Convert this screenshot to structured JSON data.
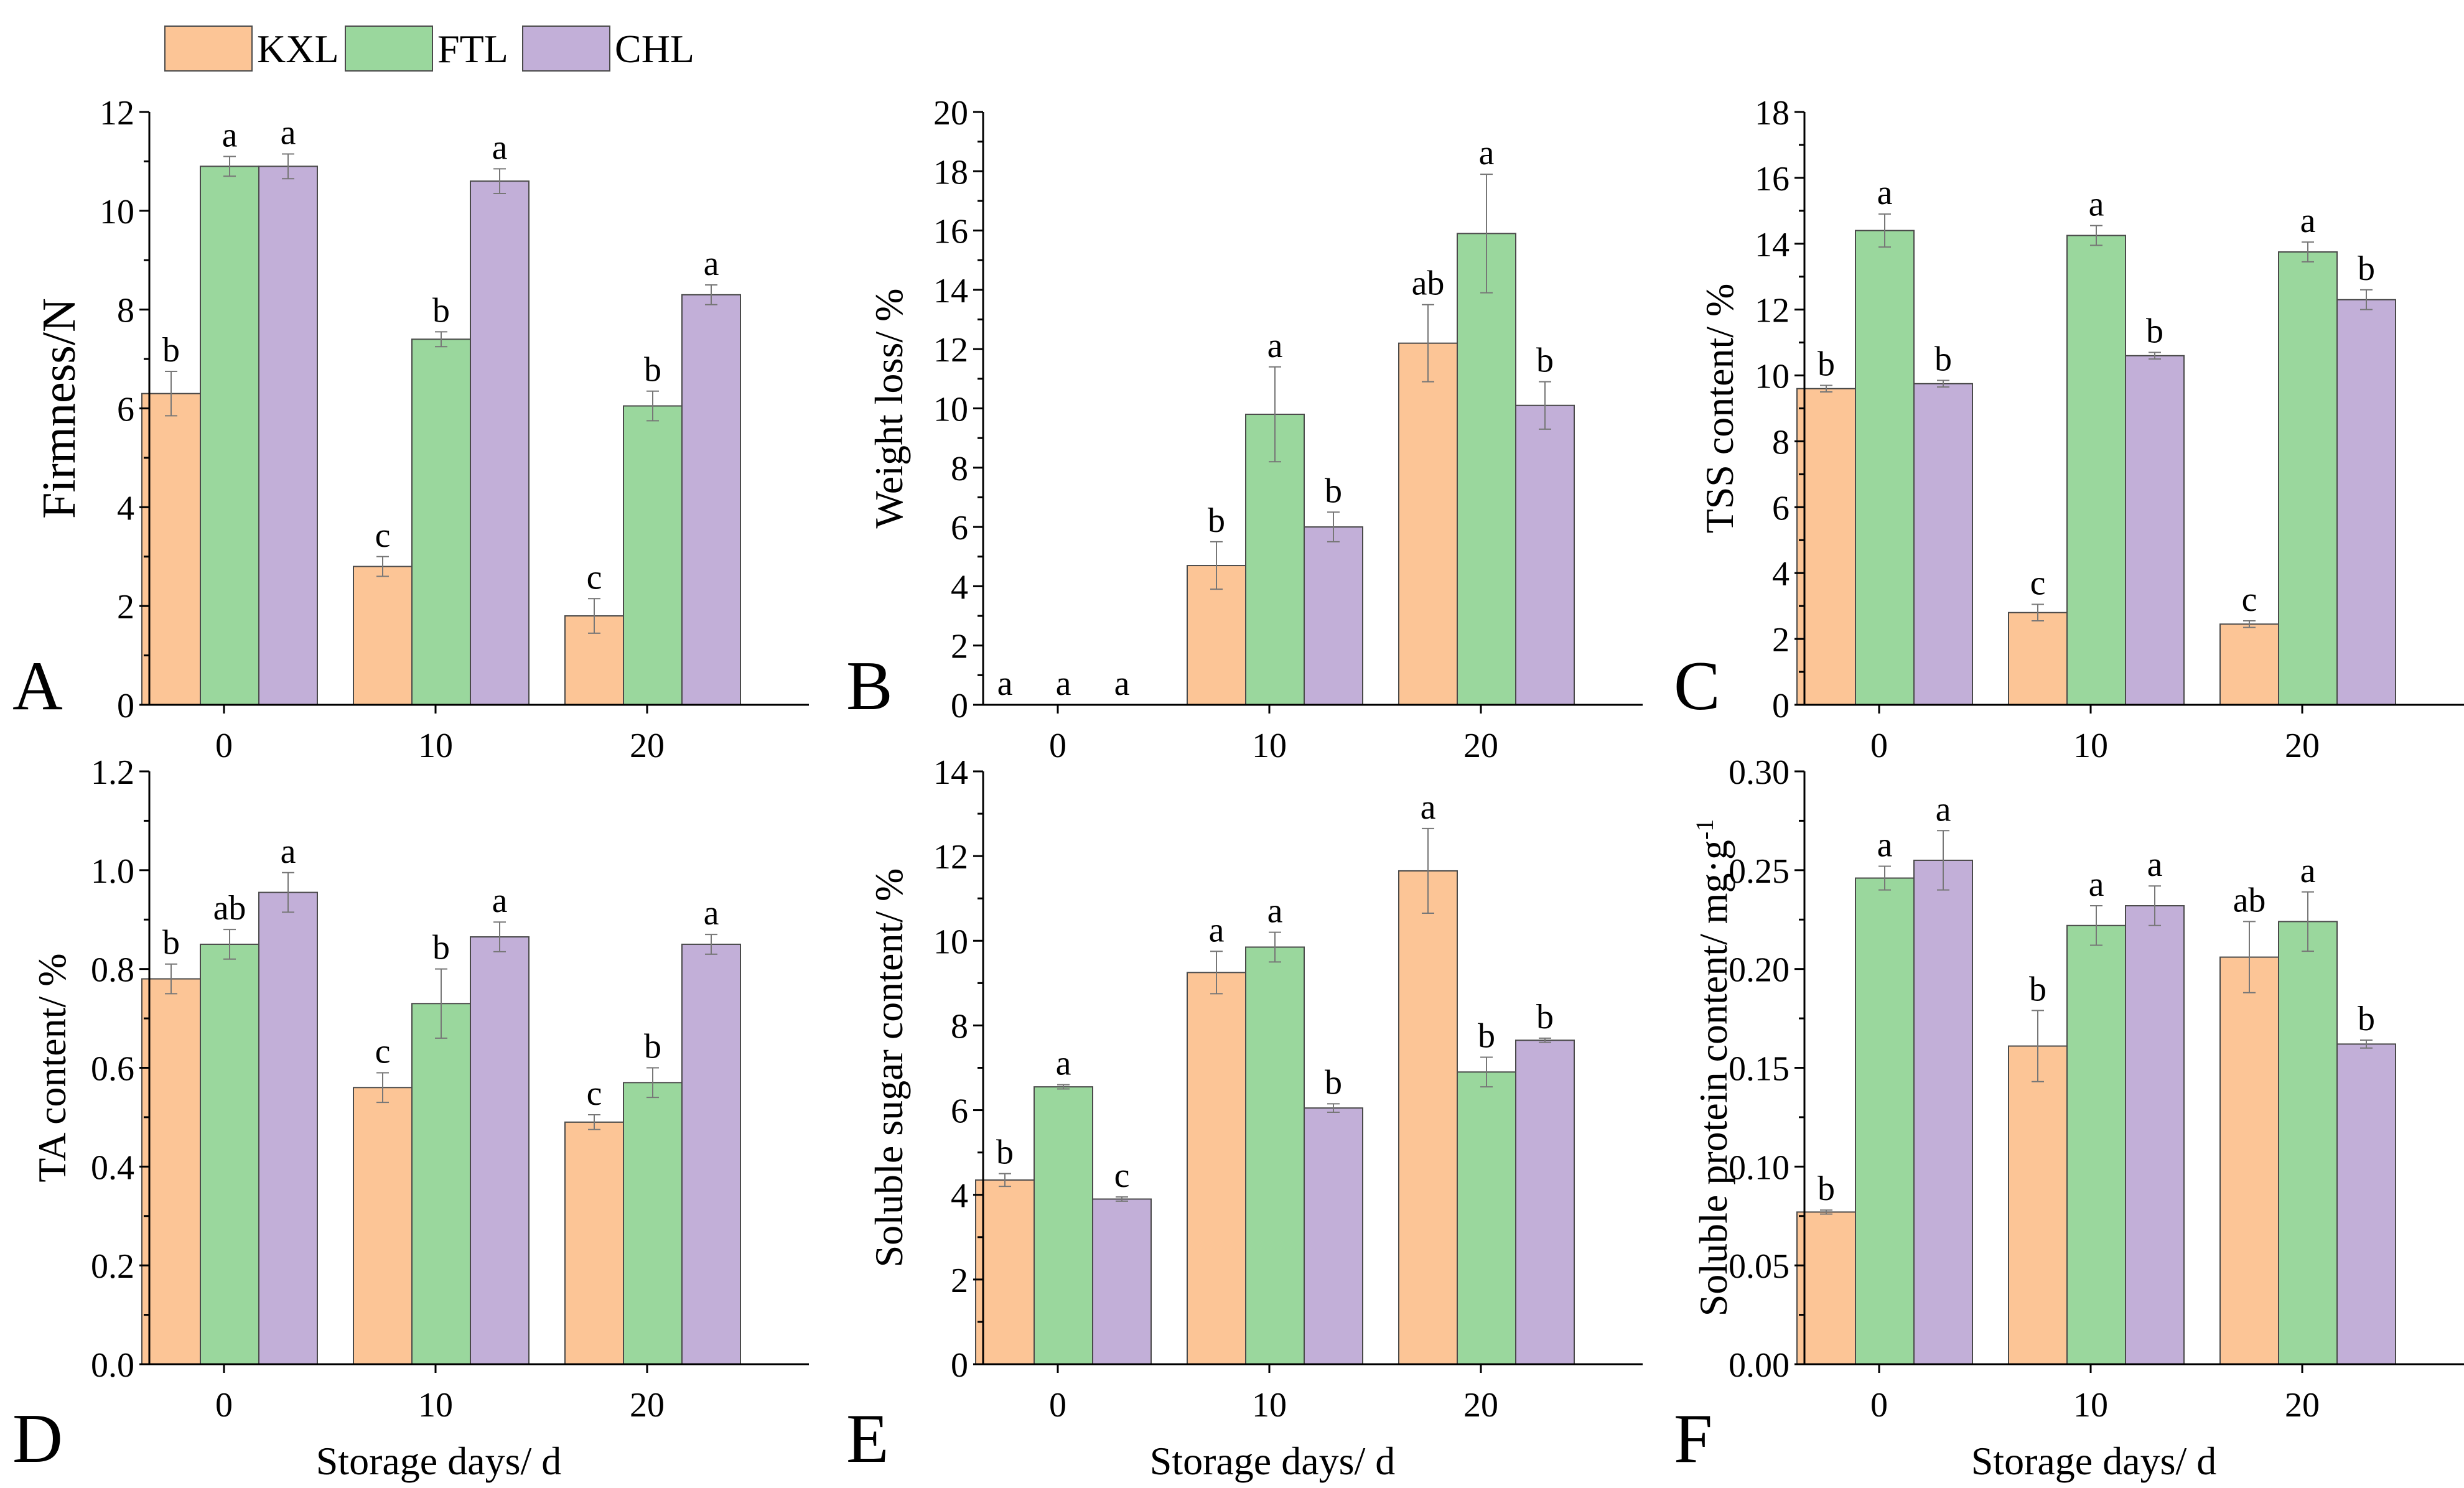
{
  "colors": {
    "KXL": "#fcc596",
    "FTL": "#9ad79d",
    "CHL": "#c2afd8"
  },
  "legend": [
    "KXL",
    "FTL",
    "CHL"
  ],
  "chart_data": [
    {
      "panel": "A",
      "type": "bar",
      "categories": [
        "0",
        "10",
        "20"
      ],
      "xlabel": "",
      "ylabel": "Firmness/N",
      "ylim": [
        0,
        12
      ],
      "yticks": [
        0,
        2,
        4,
        6,
        8,
        10,
        12
      ],
      "series": [
        {
          "name": "KXL",
          "values": [
            6.3,
            2.8,
            1.8
          ],
          "errors": [
            0.45,
            0.2,
            0.35
          ],
          "letters": [
            "b",
            "c",
            "c"
          ]
        },
        {
          "name": "FTL",
          "values": [
            10.9,
            7.4,
            6.05
          ],
          "errors": [
            0.2,
            0.15,
            0.3
          ],
          "letters": [
            "a",
            "b",
            "b"
          ]
        },
        {
          "name": "CHL",
          "values": [
            10.9,
            10.6,
            8.3
          ],
          "errors": [
            0.25,
            0.25,
            0.2
          ],
          "letters": [
            "a",
            "a",
            "a"
          ]
        }
      ]
    },
    {
      "panel": "B",
      "type": "bar",
      "categories": [
        "0",
        "10",
        "20"
      ],
      "xlabel": "",
      "ylabel": "Weight loss/ %",
      "ylim": [
        0,
        20
      ],
      "yticks": [
        0,
        2,
        4,
        6,
        8,
        10,
        12,
        14,
        16,
        18,
        20
      ],
      "series": [
        {
          "name": "KXL",
          "values": [
            0,
            4.7,
            12.2
          ],
          "errors": [
            0,
            0.8,
            1.3
          ],
          "letters": [
            "a",
            "b",
            "ab"
          ]
        },
        {
          "name": "FTL",
          "values": [
            0,
            9.8,
            15.9
          ],
          "errors": [
            0,
            1.6,
            2.0
          ],
          "letters": [
            "a",
            "a",
            "a"
          ]
        },
        {
          "name": "CHL",
          "values": [
            0,
            6.0,
            10.1
          ],
          "errors": [
            0,
            0.5,
            0.8
          ],
          "letters": [
            "a",
            "b",
            "b"
          ]
        }
      ]
    },
    {
      "panel": "C",
      "type": "bar",
      "categories": [
        "0",
        "10",
        "20"
      ],
      "xlabel": "",
      "ylabel": "TSS content/ %",
      "ylim": [
        0,
        18
      ],
      "yticks": [
        0,
        2,
        4,
        6,
        8,
        10,
        12,
        14,
        16,
        18
      ],
      "series": [
        {
          "name": "KXL",
          "values": [
            9.6,
            2.8,
            2.45
          ],
          "errors": [
            0.1,
            0.25,
            0.1
          ],
          "letters": [
            "b",
            "c",
            "c"
          ]
        },
        {
          "name": "FTL",
          "values": [
            14.4,
            14.25,
            13.75
          ],
          "errors": [
            0.5,
            0.3,
            0.3
          ],
          "letters": [
            "a",
            "a",
            "a"
          ]
        },
        {
          "name": "CHL",
          "values": [
            9.75,
            10.6,
            12.3
          ],
          "errors": [
            0.1,
            0.1,
            0.3
          ],
          "letters": [
            "b",
            "b",
            "b"
          ]
        }
      ]
    },
    {
      "panel": "D",
      "type": "bar",
      "categories": [
        "0",
        "10",
        "20"
      ],
      "xlabel": "Storage days/ d",
      "ylabel": "TA content/ %",
      "ylim": [
        0,
        1.2
      ],
      "yticks": [
        "0.0",
        "0.2",
        "0.4",
        "0.6",
        "0.8",
        "1.0",
        "1.2"
      ],
      "series": [
        {
          "name": "KXL",
          "values": [
            0.78,
            0.56,
            0.49
          ],
          "errors": [
            0.03,
            0.03,
            0.015
          ],
          "letters": [
            "b",
            "c",
            "c"
          ]
        },
        {
          "name": "FTL",
          "values": [
            0.85,
            0.73,
            0.57
          ],
          "errors": [
            0.03,
            0.07,
            0.03
          ],
          "letters": [
            "ab",
            "b",
            "b"
          ]
        },
        {
          "name": "CHL",
          "values": [
            0.955,
            0.865,
            0.85
          ],
          "errors": [
            0.04,
            0.03,
            0.02
          ],
          "letters": [
            "a",
            "a",
            "a"
          ]
        }
      ]
    },
    {
      "panel": "E",
      "type": "bar",
      "categories": [
        "0",
        "10",
        "20"
      ],
      "xlabel": "Storage days/ d",
      "ylabel": "Soluble sugar content/ %",
      "ylim": [
        0,
        14
      ],
      "yticks": [
        0,
        2,
        4,
        6,
        8,
        10,
        12,
        14
      ],
      "series": [
        {
          "name": "KXL",
          "values": [
            4.35,
            9.25,
            11.65
          ],
          "errors": [
            0.15,
            0.5,
            1.0
          ],
          "letters": [
            "b",
            "a",
            "a"
          ]
        },
        {
          "name": "FTL",
          "values": [
            6.55,
            9.85,
            6.9
          ],
          "errors": [
            0.05,
            0.35,
            0.35
          ],
          "letters": [
            "a",
            "a",
            "b"
          ]
        },
        {
          "name": "CHL",
          "values": [
            3.9,
            6.05,
            7.65
          ],
          "errors": [
            0.05,
            0.1,
            0.05
          ],
          "letters": [
            "c",
            "b",
            "b"
          ]
        }
      ]
    },
    {
      "panel": "F",
      "type": "bar",
      "categories": [
        "0",
        "10",
        "20"
      ],
      "xlabel": "Storage days/ d",
      "ylabel": "Soluble protein content/ mg·g",
      "ylabel_sup": "-1",
      "ylim": [
        0,
        0.3
      ],
      "yticks": [
        "0.00",
        "0.05",
        "0.10",
        "0.15",
        "0.20",
        "0.25",
        "0.30"
      ],
      "series": [
        {
          "name": "KXL",
          "values": [
            0.077,
            0.161,
            0.206
          ],
          "errors": [
            0.001,
            0.018,
            0.018
          ],
          "letters": [
            "b",
            "b",
            "ab"
          ]
        },
        {
          "name": "FTL",
          "values": [
            0.246,
            0.222,
            0.224
          ],
          "errors": [
            0.006,
            0.01,
            0.015
          ],
          "letters": [
            "a",
            "a",
            "a"
          ]
        },
        {
          "name": "CHL",
          "values": [
            0.255,
            0.232,
            0.162
          ],
          "errors": [
            0.015,
            0.01,
            0.002
          ],
          "letters": [
            "a",
            "a",
            "b"
          ]
        }
      ]
    }
  ]
}
